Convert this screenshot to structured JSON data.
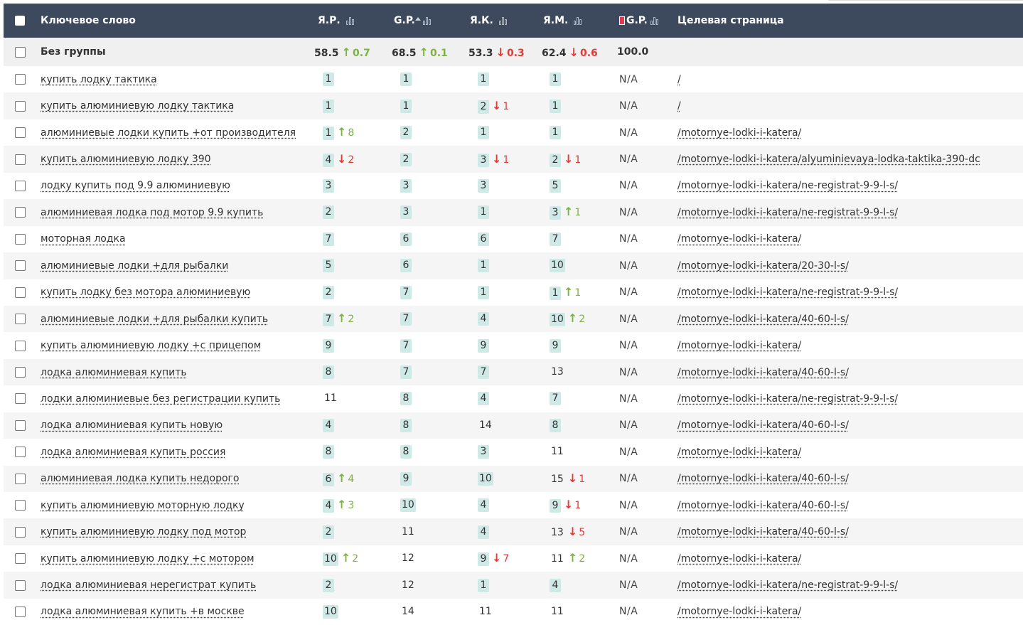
{
  "header": {
    "keyword_label": "Ключевое слово",
    "cols": [
      {
        "label": "Я.Р."
      },
      {
        "label": "G.P."
      },
      {
        "label": "Я.К."
      },
      {
        "label": "Я.М."
      },
      {
        "label": "G.P."
      }
    ],
    "target_label": "Целевая страница"
  },
  "group": {
    "name": "Без группы",
    "stats": [
      {
        "value": "58.5",
        "dir": "up",
        "delta": "0.7"
      },
      {
        "value": "68.5",
        "dir": "up",
        "delta": "0.1"
      },
      {
        "value": "53.3",
        "dir": "down",
        "delta": "0.3"
      },
      {
        "value": "62.4",
        "dir": "down",
        "delta": "0.6"
      },
      {
        "value": "100.0",
        "dir": "",
        "delta": ""
      }
    ]
  },
  "colors": {
    "header_bg": "#3d4a5d",
    "pos_bg": "#cfe9e6",
    "up": "#7cb342",
    "down": "#e53935"
  },
  "rows": [
    {
      "kw": "купить лодку тактика",
      "c": [
        [
          "1",
          true,
          "",
          ""
        ],
        [
          "1",
          true,
          "",
          ""
        ],
        [
          "1",
          true,
          "",
          ""
        ],
        [
          "1",
          true,
          "",
          ""
        ]
      ],
      "gp2": "N/A",
      "url": "/"
    },
    {
      "kw": "купить алюминиевую лодку тактика",
      "c": [
        [
          "1",
          true,
          "",
          ""
        ],
        [
          "1",
          true,
          "",
          ""
        ],
        [
          "2",
          true,
          "down",
          "1"
        ],
        [
          "1",
          true,
          "",
          ""
        ]
      ],
      "gp2": "N/A",
      "url": "/"
    },
    {
      "kw": "алюминиевые лодки купить +от производителя",
      "c": [
        [
          "1",
          true,
          "up",
          "8"
        ],
        [
          "2",
          true,
          "",
          ""
        ],
        [
          "1",
          true,
          "",
          ""
        ],
        [
          "1",
          true,
          "",
          ""
        ]
      ],
      "gp2": "N/A",
      "url": "/motornye-lodki-i-katera/"
    },
    {
      "kw": "купить алюминиевую лодку 390",
      "c": [
        [
          "4",
          true,
          "down",
          "2"
        ],
        [
          "2",
          true,
          "",
          ""
        ],
        [
          "3",
          true,
          "down",
          "1"
        ],
        [
          "2",
          true,
          "down",
          "1"
        ]
      ],
      "gp2": "N/A",
      "url": "/motornye-lodki-i-katera/alyuminievaya-lodka-taktika-390-dc"
    },
    {
      "kw": "лодку купить под 9.9 алюминиевую",
      "c": [
        [
          "3",
          true,
          "",
          ""
        ],
        [
          "3",
          true,
          "",
          ""
        ],
        [
          "3",
          true,
          "",
          ""
        ],
        [
          "5",
          true,
          "",
          ""
        ]
      ],
      "gp2": "N/A",
      "url": "/motornye-lodki-i-katera/ne-registrat-9-9-l-s/"
    },
    {
      "kw": "алюминиевая лодка под мотор 9.9 купить",
      "c": [
        [
          "2",
          true,
          "",
          ""
        ],
        [
          "3",
          true,
          "",
          ""
        ],
        [
          "1",
          true,
          "",
          ""
        ],
        [
          "3",
          true,
          "up",
          "1"
        ]
      ],
      "gp2": "N/A",
      "url": "/motornye-lodki-i-katera/ne-registrat-9-9-l-s/"
    },
    {
      "kw": "моторная лодка",
      "c": [
        [
          "7",
          true,
          "",
          ""
        ],
        [
          "6",
          true,
          "",
          ""
        ],
        [
          "6",
          true,
          "",
          ""
        ],
        [
          "7",
          true,
          "",
          ""
        ]
      ],
      "gp2": "N/A",
      "url": "/motornye-lodki-i-katera/"
    },
    {
      "kw": "алюминиевые лодки +для рыбалки",
      "c": [
        [
          "5",
          true,
          "",
          ""
        ],
        [
          "6",
          true,
          "",
          ""
        ],
        [
          "1",
          true,
          "",
          ""
        ],
        [
          "10",
          true,
          "",
          ""
        ]
      ],
      "gp2": "N/A",
      "url": "/motornye-lodki-i-katera/20-30-l-s/"
    },
    {
      "kw": "купить лодку без мотора алюминиевую",
      "c": [
        [
          "2",
          true,
          "",
          ""
        ],
        [
          "7",
          true,
          "",
          ""
        ],
        [
          "1",
          true,
          "",
          ""
        ],
        [
          "1",
          true,
          "up",
          "1"
        ]
      ],
      "gp2": "N/A",
      "url": "/motornye-lodki-i-katera/ne-registrat-9-9-l-s/"
    },
    {
      "kw": "алюминиевые лодки +для рыбалки купить",
      "c": [
        [
          "7",
          true,
          "up",
          "2"
        ],
        [
          "7",
          true,
          "",
          ""
        ],
        [
          "4",
          true,
          "",
          ""
        ],
        [
          "10",
          true,
          "up",
          "2"
        ]
      ],
      "gp2": "N/A",
      "url": "/motornye-lodki-i-katera/40-60-l-s/"
    },
    {
      "kw": "купить алюминиевую лодку +с прицепом",
      "c": [
        [
          "9",
          true,
          "",
          ""
        ],
        [
          "7",
          true,
          "",
          ""
        ],
        [
          "9",
          true,
          "",
          ""
        ],
        [
          "9",
          true,
          "",
          ""
        ]
      ],
      "gp2": "N/A",
      "url": "/motornye-lodki-i-katera/"
    },
    {
      "kw": "лодка алюминиевая купить",
      "c": [
        [
          "8",
          true,
          "",
          ""
        ],
        [
          "7",
          true,
          "",
          ""
        ],
        [
          "7",
          true,
          "",
          ""
        ],
        [
          "13",
          false,
          "",
          ""
        ]
      ],
      "gp2": "N/A",
      "url": "/motornye-lodki-i-katera/40-60-l-s/"
    },
    {
      "kw": "лодки алюминиевые без регистрации купить",
      "c": [
        [
          "11",
          false,
          "",
          ""
        ],
        [
          "8",
          true,
          "",
          ""
        ],
        [
          "4",
          true,
          "",
          ""
        ],
        [
          "7",
          true,
          "",
          ""
        ]
      ],
      "gp2": "N/A",
      "url": "/motornye-lodki-i-katera/ne-registrat-9-9-l-s/"
    },
    {
      "kw": "лодка алюминиевая купить новую",
      "c": [
        [
          "4",
          true,
          "",
          ""
        ],
        [
          "8",
          true,
          "",
          ""
        ],
        [
          "14",
          false,
          "",
          ""
        ],
        [
          "8",
          true,
          "",
          ""
        ]
      ],
      "gp2": "N/A",
      "url": "/motornye-lodki-i-katera/40-60-l-s/"
    },
    {
      "kw": "лодка алюминиевая купить россия",
      "c": [
        [
          "8",
          true,
          "",
          ""
        ],
        [
          "8",
          true,
          "",
          ""
        ],
        [
          "3",
          true,
          "",
          ""
        ],
        [
          "11",
          false,
          "",
          ""
        ]
      ],
      "gp2": "N/A",
      "url": "/motornye-lodki-i-katera/"
    },
    {
      "kw": "алюминиевая лодка купить недорого",
      "c": [
        [
          "6",
          true,
          "up",
          "4"
        ],
        [
          "9",
          true,
          "",
          ""
        ],
        [
          "10",
          true,
          "",
          ""
        ],
        [
          "15",
          false,
          "down",
          "1"
        ]
      ],
      "gp2": "N/A",
      "url": "/motornye-lodki-i-katera/40-60-l-s/"
    },
    {
      "kw": "купить алюминиевую моторную лодку",
      "c": [
        [
          "4",
          true,
          "up",
          "3"
        ],
        [
          "10",
          true,
          "",
          ""
        ],
        [
          "4",
          true,
          "",
          ""
        ],
        [
          "9",
          true,
          "down",
          "1"
        ]
      ],
      "gp2": "N/A",
      "url": "/motornye-lodki-i-katera/40-60-l-s/"
    },
    {
      "kw": "купить алюминиевую лодку под мотор",
      "c": [
        [
          "2",
          true,
          "",
          ""
        ],
        [
          "11",
          false,
          "",
          ""
        ],
        [
          "4",
          true,
          "",
          ""
        ],
        [
          "13",
          false,
          "down",
          "5"
        ]
      ],
      "gp2": "N/A",
      "url": "/motornye-lodki-i-katera/40-60-l-s/"
    },
    {
      "kw": "купить алюминиевую лодку +с мотором",
      "c": [
        [
          "10",
          true,
          "up",
          "2"
        ],
        [
          "12",
          false,
          "",
          ""
        ],
        [
          "9",
          true,
          "down",
          "7"
        ],
        [
          "11",
          false,
          "up",
          "2"
        ]
      ],
      "gp2": "N/A",
      "url": "/motornye-lodki-i-katera/"
    },
    {
      "kw": "лодка алюминиевая нерегистрат купить",
      "c": [
        [
          "2",
          true,
          "",
          ""
        ],
        [
          "12",
          false,
          "",
          ""
        ],
        [
          "1",
          true,
          "",
          ""
        ],
        [
          "4",
          true,
          "",
          ""
        ]
      ],
      "gp2": "N/A",
      "url": "/motornye-lodki-i-katera/ne-registrat-9-9-l-s/"
    },
    {
      "kw": "лодка алюминиевая купить +в москве",
      "c": [
        [
          "10",
          true,
          "",
          ""
        ],
        [
          "14",
          false,
          "",
          ""
        ],
        [
          "11",
          false,
          "",
          ""
        ],
        [
          "11",
          false,
          "",
          ""
        ]
      ],
      "gp2": "N/A",
      "url": "/motornye-lodki-i-katera/"
    }
  ]
}
